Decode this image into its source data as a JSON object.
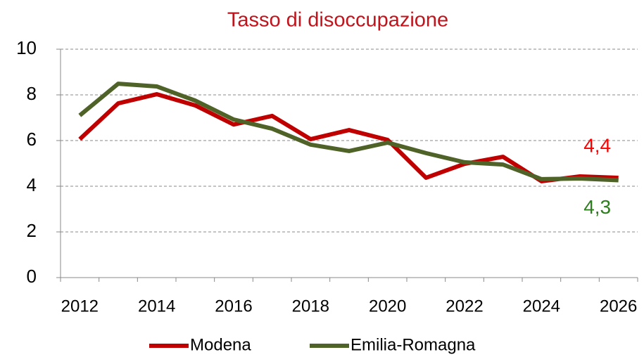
{
  "chart_data": {
    "type": "line",
    "title": "Tasso di disoccupazione",
    "categories": [
      "2012",
      null,
      "2014",
      null,
      "2016",
      null,
      "2018",
      null,
      "2020",
      null,
      "2022",
      null,
      "2024",
      null,
      "2026"
    ],
    "series": [
      {
        "name": "Modena",
        "color": "#c00000",
        "values": [
          6.06,
          7.63,
          8.03,
          7.54,
          6.7,
          7.08,
          6.06,
          6.46,
          6.03,
          4.37,
          4.98,
          5.29,
          4.22,
          4.43,
          4.37
        ],
        "value_labels": [
          null,
          null,
          null,
          null,
          null,
          null,
          null,
          null,
          null,
          null,
          null,
          null,
          null,
          null,
          "4,4"
        ],
        "label_color": "#ff0000"
      },
      {
        "name": "Emilia-Romagna",
        "color": "#4f6228",
        "values": [
          7.1,
          8.49,
          8.37,
          7.75,
          6.92,
          6.52,
          5.82,
          5.54,
          5.91,
          5.45,
          5.05,
          4.95,
          4.31,
          4.34,
          4.26
        ],
        "value_labels": [
          null,
          null,
          null,
          null,
          null,
          null,
          null,
          null,
          null,
          null,
          null,
          null,
          null,
          null,
          "4,3"
        ],
        "label_color": "#2e7d1e"
      }
    ],
    "ylim": [
      0,
      10
    ],
    "yticks": [
      0,
      2,
      4,
      6,
      8,
      10
    ],
    "grid": true,
    "legend": "bottom"
  }
}
